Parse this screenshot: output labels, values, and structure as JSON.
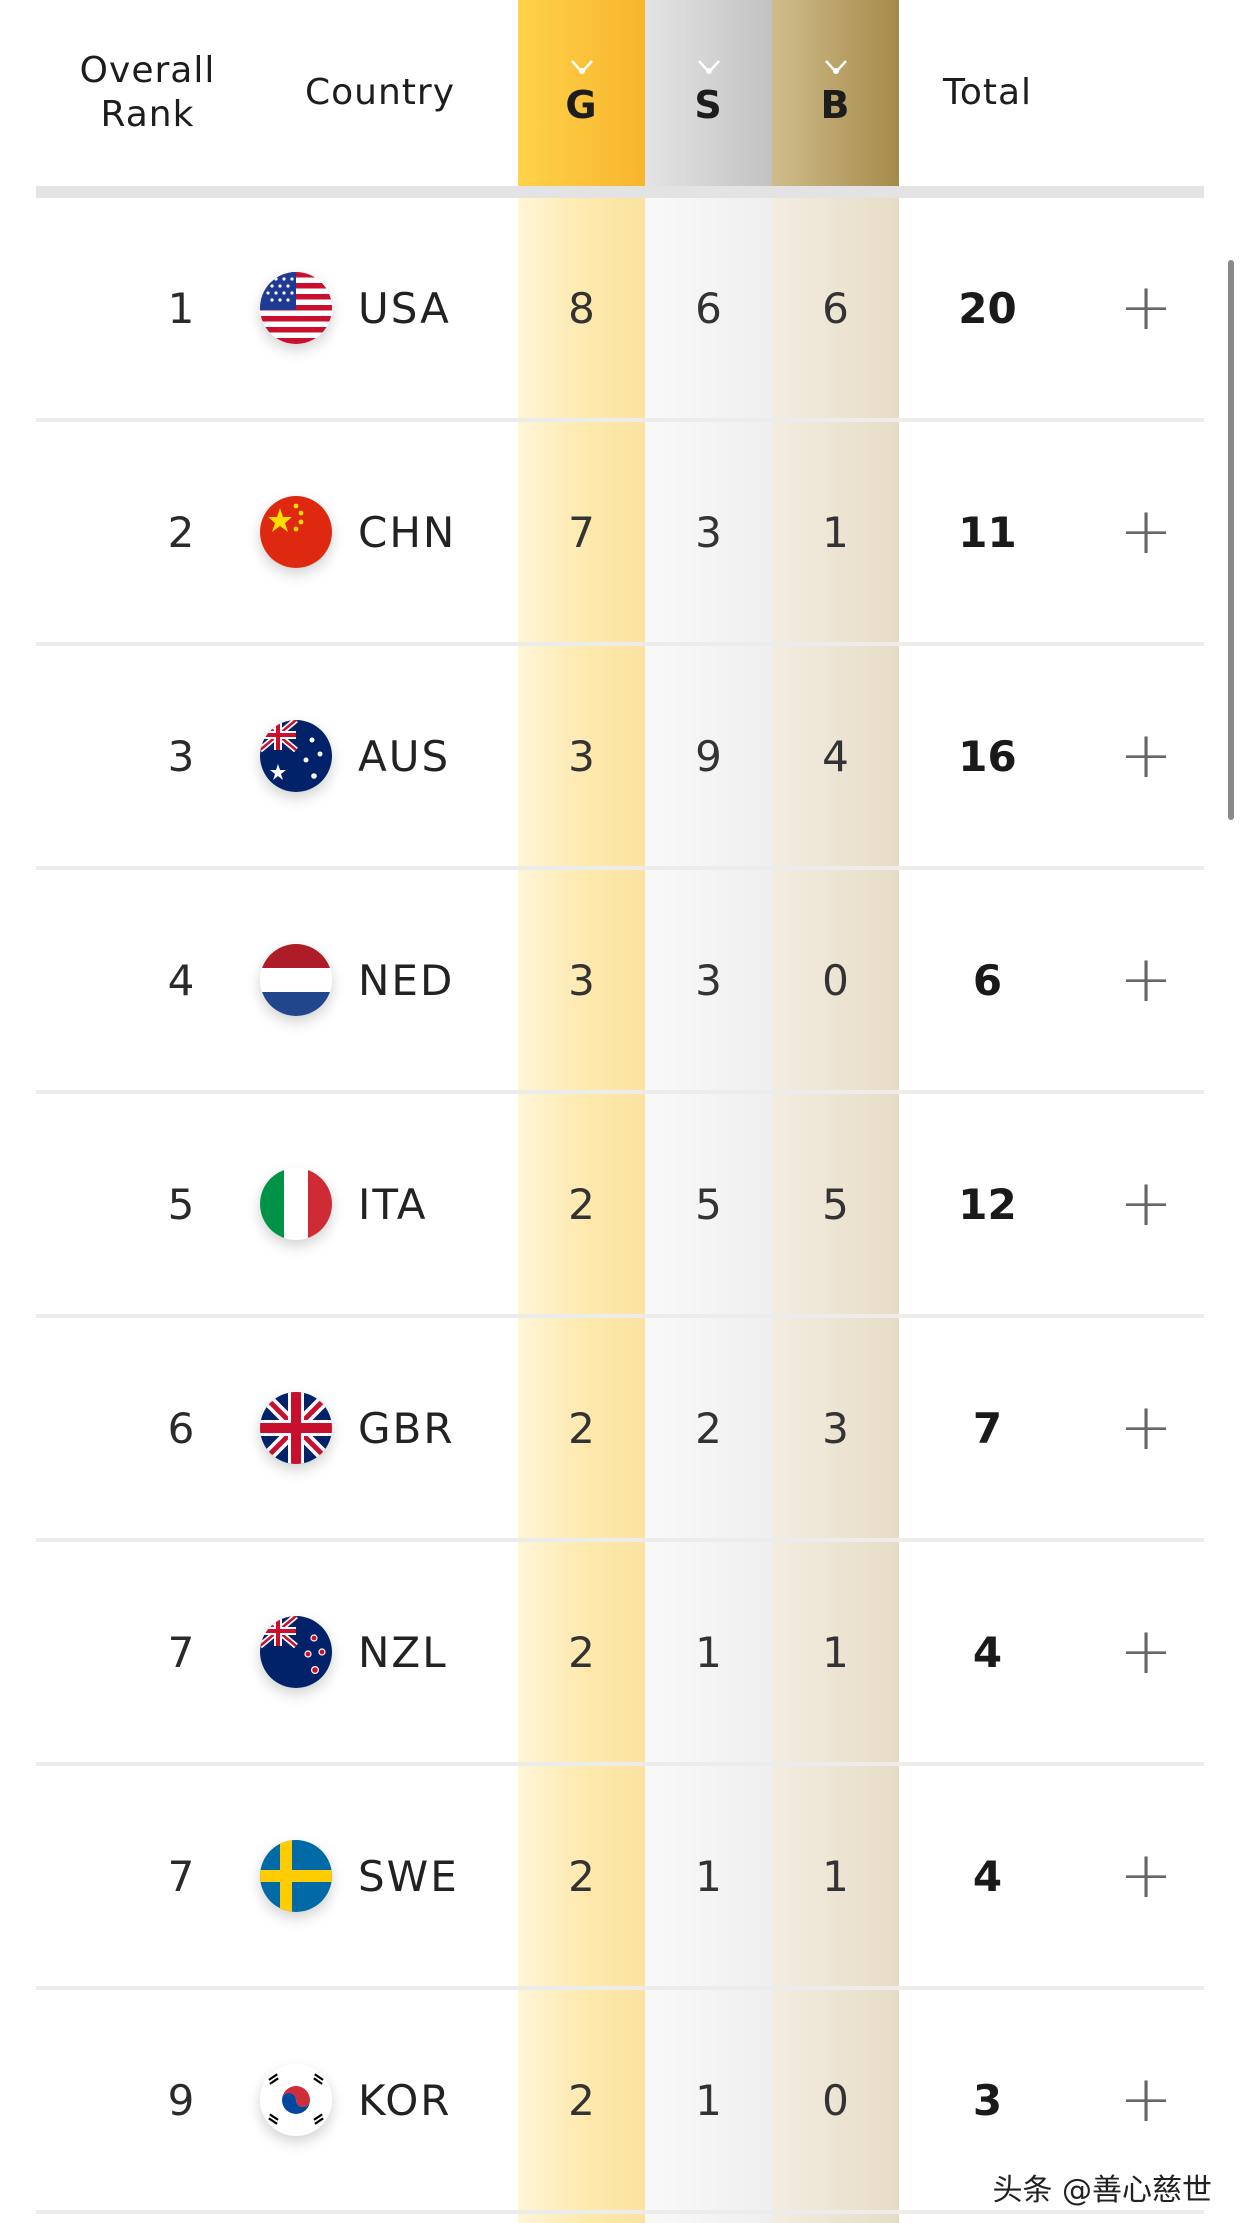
{
  "header": {
    "rank_label_line1": "Overall",
    "rank_label_line2": "Rank",
    "country_label": "Country",
    "gold_label": "G",
    "silver_label": "S",
    "bronze_label": "B",
    "total_label": "Total"
  },
  "colors": {
    "gold": "#f7b52c",
    "silver": "#c2c2c2",
    "bronze": "#a68a4a"
  },
  "expand_symbol": "+",
  "rows": [
    {
      "rank": "1",
      "code": "USA",
      "flag": "usa-flag-icon",
      "gold": "8",
      "silver": "6",
      "bronze": "6",
      "total": "20"
    },
    {
      "rank": "2",
      "code": "CHN",
      "flag": "china-flag-icon",
      "gold": "7",
      "silver": "3",
      "bronze": "1",
      "total": "11"
    },
    {
      "rank": "3",
      "code": "AUS",
      "flag": "australia-flag-icon",
      "gold": "3",
      "silver": "9",
      "bronze": "4",
      "total": "16"
    },
    {
      "rank": "4",
      "code": "NED",
      "flag": "netherlands-flag-icon",
      "gold": "3",
      "silver": "3",
      "bronze": "0",
      "total": "6"
    },
    {
      "rank": "5",
      "code": "ITA",
      "flag": "italy-flag-icon",
      "gold": "2",
      "silver": "5",
      "bronze": "5",
      "total": "12"
    },
    {
      "rank": "6",
      "code": "GBR",
      "flag": "uk-flag-icon",
      "gold": "2",
      "silver": "2",
      "bronze": "3",
      "total": "7"
    },
    {
      "rank": "7",
      "code": "NZL",
      "flag": "new-zealand-flag-icon",
      "gold": "2",
      "silver": "1",
      "bronze": "1",
      "total": "4"
    },
    {
      "rank": "7",
      "code": "SWE",
      "flag": "sweden-flag-icon",
      "gold": "2",
      "silver": "1",
      "bronze": "1",
      "total": "4"
    },
    {
      "rank": "9",
      "code": "KOR",
      "flag": "korea-flag-icon",
      "gold": "2",
      "silver": "1",
      "bronze": "0",
      "total": "3"
    }
  ],
  "watermark": "头条 @善心慈世"
}
